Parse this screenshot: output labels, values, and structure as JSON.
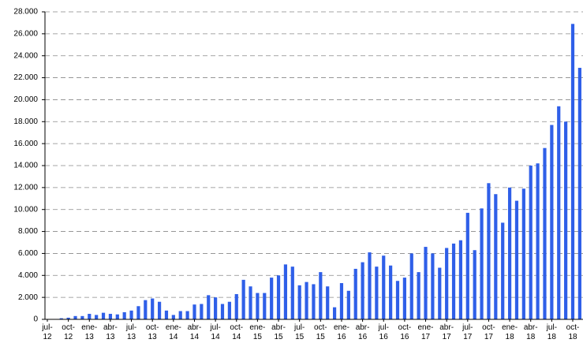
{
  "chart_data": {
    "type": "bar",
    "categories": [
      "jul-12",
      null,
      null,
      "oct-12",
      null,
      null,
      "ene-13",
      null,
      null,
      "abr-13",
      null,
      null,
      "jul-13",
      null,
      null,
      "oct-13",
      null,
      null,
      "ene-14",
      null,
      null,
      "abr-14",
      null,
      null,
      "jul-14",
      null,
      null,
      "oct-14",
      null,
      null,
      "ene-15",
      null,
      null,
      "abr-15",
      null,
      null,
      "jul-15",
      null,
      null,
      "oct-15",
      null,
      null,
      "ene-16",
      null,
      null,
      "abr-16",
      null,
      null,
      "jul-16",
      null,
      null,
      "oct-16",
      null,
      null,
      "ene-17",
      null,
      null,
      "abr-17",
      null,
      null,
      "jul-17",
      null,
      null,
      "oct-17",
      null,
      null,
      "ene-18",
      null,
      null,
      "abr-18",
      null,
      null,
      "jul-18",
      null,
      null,
      "oct-18",
      null
    ],
    "values": [
      0,
      0,
      100,
      150,
      300,
      300,
      500,
      400,
      600,
      500,
      450,
      650,
      800,
      1200,
      1750,
      1900,
      1600,
      800,
      400,
      750,
      750,
      1350,
      1400,
      2200,
      2000,
      1400,
      1600,
      2300,
      3600,
      3000,
      2400,
      2400,
      3800,
      4000,
      5000,
      4800,
      3100,
      3400,
      3200,
      4300,
      3000,
      1100,
      3300,
      2600,
      4600,
      5200,
      6100,
      4800,
      5800,
      4900,
      3500,
      3800,
      6000,
      4300,
      6600,
      6000,
      4700,
      6500,
      6900,
      7200,
      9700,
      6300,
      10100,
      12400,
      11400,
      8800,
      12000,
      10800,
      11900,
      14000,
      14200,
      15600,
      17700,
      19400,
      18000,
      26900,
      22900
    ],
    "color": "#2f5fe8",
    "ylim": [
      0,
      28000
    ],
    "yticks": [
      0,
      {
        "value": 2000,
        "label": "2.000"
      },
      {
        "value": 4000,
        "label": "4.000"
      },
      {
        "value": 6000,
        "label": "6.000"
      },
      {
        "value": 8000,
        "label": "8.000"
      },
      {
        "value": 10000,
        "label": "10.000"
      },
      {
        "value": 12000,
        "label": "12.000"
      },
      {
        "value": 14000,
        "label": "14.000"
      },
      {
        "value": 16000,
        "label": "16.000"
      },
      {
        "value": 18000,
        "label": "18.000"
      },
      {
        "value": 20000,
        "label": "20.000"
      },
      {
        "value": 22000,
        "label": "22.000"
      },
      {
        "value": 24000,
        "label": "24.000"
      },
      {
        "value": 26000,
        "label": "26.000"
      },
      {
        "value": 28000,
        "label": "28.000"
      }
    ],
    "grid": true
  }
}
